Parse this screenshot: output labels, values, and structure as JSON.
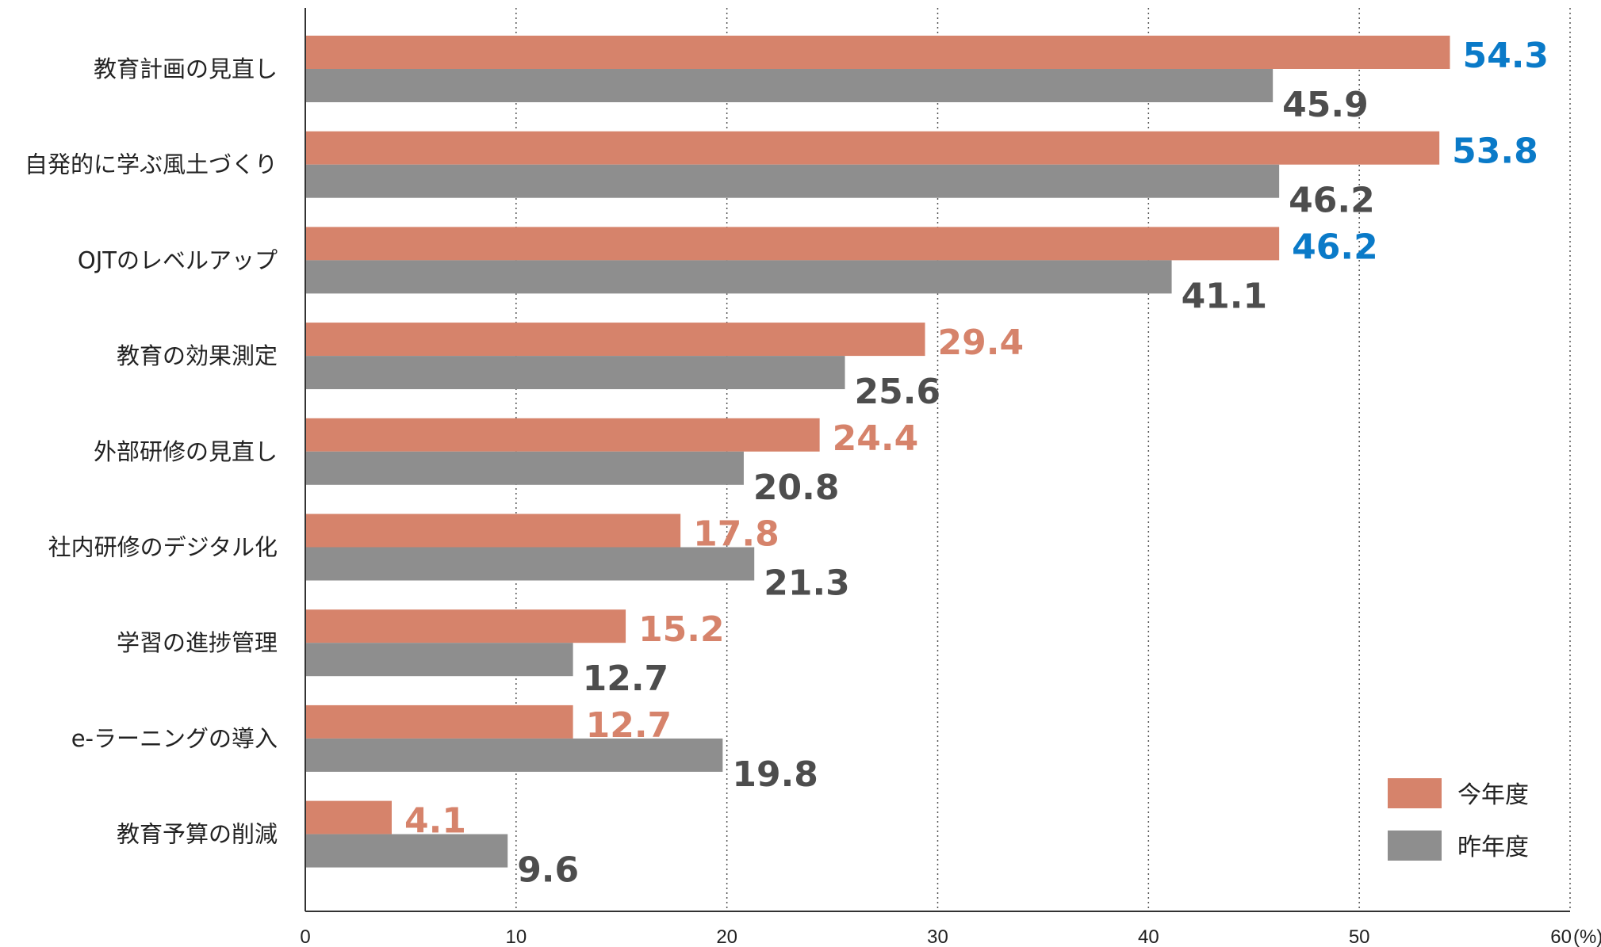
{
  "chart_data": {
    "type": "bar",
    "orientation": "horizontal",
    "categories": [
      "教育計画の見直し",
      "自発的に学ぶ風土づくり",
      "OJTのレベルアップ",
      "教育の効果測定",
      "外部研修の見直し",
      "社内研修のデジタル化",
      "学習の進捗管理",
      "e-ラーニングの導入",
      "教育予算の削減"
    ],
    "series": [
      {
        "name": "今年度",
        "values": [
          54.3,
          53.8,
          46.2,
          29.4,
          24.4,
          17.8,
          15.2,
          12.7,
          4.1
        ],
        "color": "#D6836B"
      },
      {
        "name": "昨年度",
        "values": [
          45.9,
          46.2,
          41.1,
          25.6,
          20.8,
          21.3,
          12.7,
          19.8,
          9.6
        ],
        "color": "#8E8E8E"
      }
    ],
    "highlight_color": "#0A7AC8",
    "highlight_top_n": 3,
    "label_gray_color": "#4D4D4D",
    "xlim": [
      0,
      60
    ],
    "xticks": [
      0,
      10,
      20,
      30,
      40,
      50,
      60
    ],
    "x_unit": "(%)",
    "grid": "vertical-dotted",
    "legend_position": "bottom-right"
  }
}
